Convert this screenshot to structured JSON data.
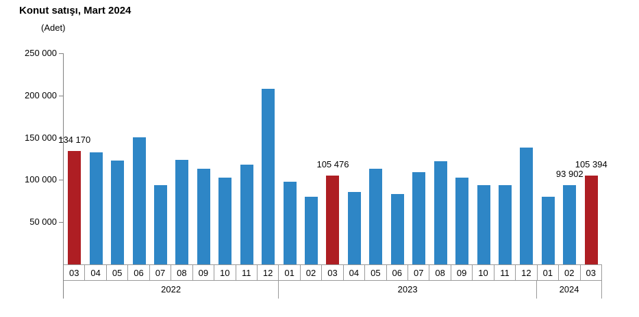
{
  "title": "Konut satışı, Mart 2024",
  "axis_unit": "(Adet)",
  "colors": {
    "bar_blue": "#2E86C6",
    "bar_red": "#AE1E23",
    "axis_gray": "#808080",
    "grid_gray": "#999999",
    "text": "#000000"
  },
  "chart_data": {
    "type": "bar",
    "title": "Konut satışı, Mart 2024",
    "ylabel": "(Adet)",
    "xlabel": "",
    "ylim": [
      0,
      250000
    ],
    "grid": false,
    "legend": false,
    "highlight_note": "March bars (03) are red, all other months blue; only four bars carry data labels",
    "yticks": [
      {
        "value": 250000,
        "label": "250 000"
      },
      {
        "value": 200000,
        "label": "200 000"
      },
      {
        "value": 150000,
        "label": "150 000"
      },
      {
        "value": 100000,
        "label": "100 000"
      },
      {
        "value": 50000,
        "label": "50 000"
      }
    ],
    "groups": [
      {
        "year": "2022",
        "points": [
          {
            "month": "03",
            "value": 134170,
            "highlight": true,
            "label": "134 170"
          },
          {
            "month": "04",
            "value": 133058,
            "highlight": false
          },
          {
            "month": "05",
            "value": 122768,
            "highlight": false
          },
          {
            "month": "06",
            "value": 150509,
            "highlight": false
          },
          {
            "month": "07",
            "value": 93902,
            "highlight": false
          },
          {
            "month": "08",
            "value": 123491,
            "highlight": false
          },
          {
            "month": "09",
            "value": 113402,
            "highlight": false
          },
          {
            "month": "10",
            "value": 102533,
            "highlight": false
          },
          {
            "month": "11",
            "value": 117806,
            "highlight": false
          },
          {
            "month": "12",
            "value": 207963,
            "highlight": false
          }
        ]
      },
      {
        "year": "2023",
        "points": [
          {
            "month": "01",
            "value": 97708,
            "highlight": false
          },
          {
            "month": "02",
            "value": 80031,
            "highlight": false
          },
          {
            "month": "03",
            "value": 105476,
            "highlight": true,
            "label": "105 476"
          },
          {
            "month": "04",
            "value": 85652,
            "highlight": false
          },
          {
            "month": "05",
            "value": 113656,
            "highlight": false
          },
          {
            "month": "06",
            "value": 83636,
            "highlight": false
          },
          {
            "month": "07",
            "value": 109548,
            "highlight": false
          },
          {
            "month": "08",
            "value": 122091,
            "highlight": false
          },
          {
            "month": "09",
            "value": 102656,
            "highlight": false
          },
          {
            "month": "10",
            "value": 93761,
            "highlight": false
          },
          {
            "month": "11",
            "value": 93514,
            "highlight": false
          },
          {
            "month": "12",
            "value": 138577,
            "highlight": false
          }
        ]
      },
      {
        "year": "2024",
        "points": [
          {
            "month": "01",
            "value": 80308,
            "highlight": false
          },
          {
            "month": "02",
            "value": 93902,
            "highlight": false,
            "label": "93 902"
          },
          {
            "month": "03",
            "value": 105394,
            "highlight": true,
            "label": "105 394"
          }
        ]
      }
    ]
  }
}
